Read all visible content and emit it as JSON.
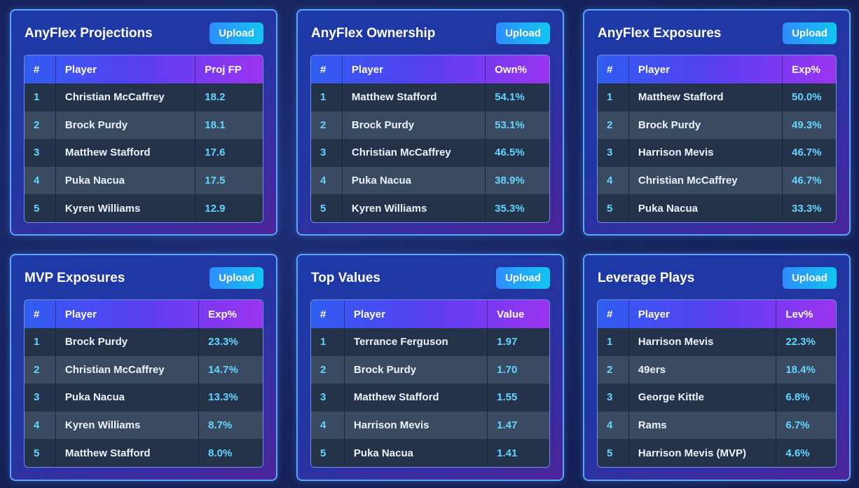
{
  "upload_label": "Upload",
  "cards": [
    {
      "title": "AnyFlex Projections",
      "headers": [
        "#",
        "Player",
        "Proj FP"
      ],
      "rows": [
        [
          "1",
          "Christian McCaffrey",
          "18.2"
        ],
        [
          "2",
          "Brock Purdy",
          "18.1"
        ],
        [
          "3",
          "Matthew Stafford",
          "17.6"
        ],
        [
          "4",
          "Puka Nacua",
          "17.5"
        ],
        [
          "5",
          "Kyren Williams",
          "12.9"
        ]
      ]
    },
    {
      "title": "AnyFlex Ownership",
      "headers": [
        "#",
        "Player",
        "Own%"
      ],
      "rows": [
        [
          "1",
          "Matthew Stafford",
          "54.1%"
        ],
        [
          "2",
          "Brock Purdy",
          "53.1%"
        ],
        [
          "3",
          "Christian McCaffrey",
          "46.5%"
        ],
        [
          "4",
          "Puka Nacua",
          "38.9%"
        ],
        [
          "5",
          "Kyren Williams",
          "35.3%"
        ]
      ]
    },
    {
      "title": "AnyFlex Exposures",
      "headers": [
        "#",
        "Player",
        "Exp%"
      ],
      "rows": [
        [
          "1",
          "Matthew Stafford",
          "50.0%"
        ],
        [
          "2",
          "Brock Purdy",
          "49.3%"
        ],
        [
          "3",
          "Harrison Mevis",
          "46.7%"
        ],
        [
          "4",
          "Christian McCaffrey",
          "46.7%"
        ],
        [
          "5",
          "Puka Nacua",
          "33.3%"
        ]
      ]
    },
    {
      "title": "MVP Exposures",
      "headers": [
        "#",
        "Player",
        "Exp%"
      ],
      "rows": [
        [
          "1",
          "Brock Purdy",
          "23.3%"
        ],
        [
          "2",
          "Christian McCaffrey",
          "14.7%"
        ],
        [
          "3",
          "Puka Nacua",
          "13.3%"
        ],
        [
          "4",
          "Kyren Williams",
          "8.7%"
        ],
        [
          "5",
          "Matthew Stafford",
          "8.0%"
        ]
      ]
    },
    {
      "title": "Top Values",
      "headers": [
        "#",
        "Player",
        "Value"
      ],
      "rows": [
        [
          "1",
          "Terrance Ferguson",
          "1.97"
        ],
        [
          "2",
          "Brock Purdy",
          "1.70"
        ],
        [
          "3",
          "Matthew Stafford",
          "1.55"
        ],
        [
          "4",
          "Harrison Mevis",
          "1.47"
        ],
        [
          "5",
          "Puka Nacua",
          "1.41"
        ]
      ]
    },
    {
      "title": "Leverage Plays",
      "headers": [
        "#",
        "Player",
        "Lev%"
      ],
      "rows": [
        [
          "1",
          "Harrison Mevis",
          "22.3%"
        ],
        [
          "2",
          "49ers",
          "18.4%"
        ],
        [
          "3",
          "George Kittle",
          "6.8%"
        ],
        [
          "4",
          "Rams",
          "6.7%"
        ],
        [
          "5",
          "Harrison Mevis (MVP)",
          "4.6%"
        ]
      ]
    }
  ],
  "colors": {
    "accent": "#64d6ff",
    "card_border": "#5aa6ff",
    "upload_button": "#2f8cff"
  }
}
